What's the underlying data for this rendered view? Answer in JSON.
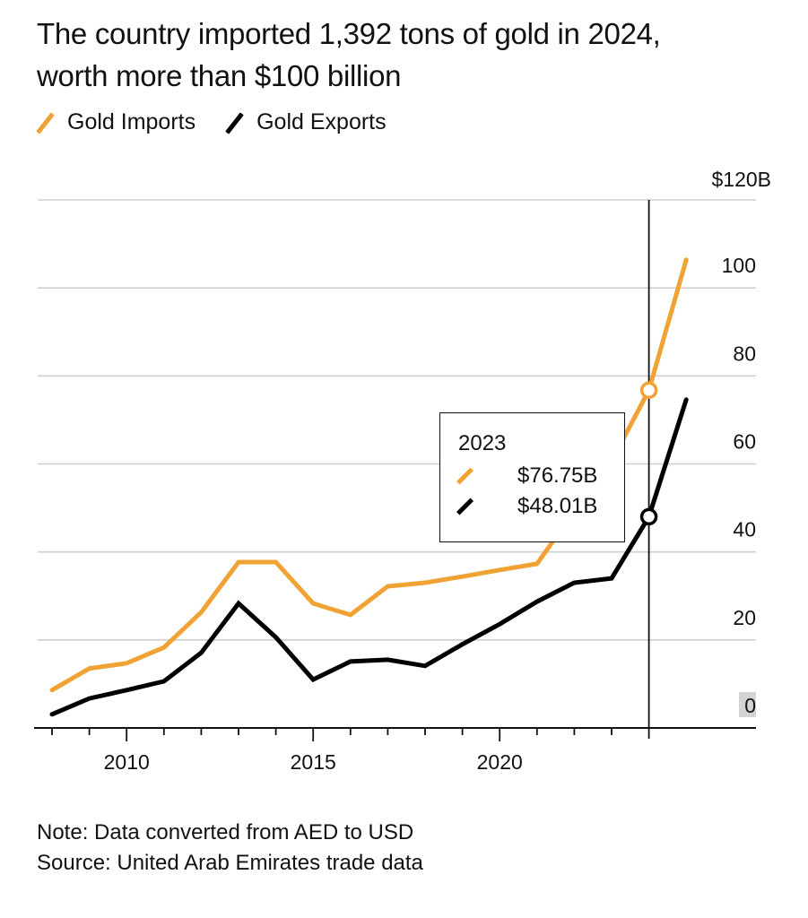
{
  "chart_data": {
    "type": "line",
    "title": "The country imported 1,392 tons of gold in 2024, worth more than $100 billion",
    "xlabel": "",
    "ylabel": "",
    "x": [
      2007,
      2008,
      2009,
      2010,
      2011,
      2012,
      2013,
      2014,
      2015,
      2016,
      2017,
      2018,
      2019,
      2020,
      2021,
      2022,
      2023,
      2024
    ],
    "series": [
      {
        "name": "Gold Imports",
        "color": "#f0a234",
        "values": [
          8.6,
          13.5,
          14.7,
          18.3,
          26.3,
          37.7,
          37.7,
          28.3,
          25.7,
          32.2,
          33.0,
          34.4,
          35.9,
          37.3,
          49.3,
          60.7,
          76.75,
          106.4
        ]
      },
      {
        "name": "Gold Exports",
        "color": "#000000",
        "values": [
          3.1,
          6.7,
          8.6,
          10.6,
          17.1,
          28.3,
          20.6,
          11.0,
          15.1,
          15.5,
          14.1,
          19.0,
          23.6,
          28.7,
          33.0,
          34.0,
          48.01,
          74.6
        ]
      }
    ],
    "ylim": [
      0,
      120
    ],
    "yticks": [
      0,
      20,
      40,
      60,
      80,
      100,
      120
    ],
    "ytick_labels": [
      "0",
      "20",
      "40",
      "60",
      "80",
      "100",
      "$120B"
    ],
    "xticks_minor": [
      2008,
      2009,
      2010,
      2011,
      2012,
      2013,
      2014,
      2015,
      2016,
      2017,
      2018,
      2019,
      2020,
      2021,
      2022,
      2023
    ],
    "xtick_labels": [
      {
        "year": 2010,
        "label": "2010"
      },
      {
        "year": 2015,
        "label": "2015"
      },
      {
        "year": 2020,
        "label": "2020"
      }
    ],
    "grid": true,
    "y_axis_side": "right",
    "legend_position": "top-left",
    "hover": {
      "year": "2023",
      "imports_label": "$76.75B",
      "exports_label": "$48.01B"
    }
  },
  "title": "The country imported 1,392 tons of gold in 2024, worth more than $100 billion",
  "legend": [
    {
      "label": "Gold Imports",
      "color": "#f0a234"
    },
    {
      "label": "Gold Exports",
      "color": "#000000"
    }
  ],
  "tooltip": {
    "year": "2023",
    "imports_value": "$76.75B",
    "exports_value": "$48.01B"
  },
  "note": "Note: Data converted from AED to USD",
  "source": "Source: United Arab Emirates trade data"
}
